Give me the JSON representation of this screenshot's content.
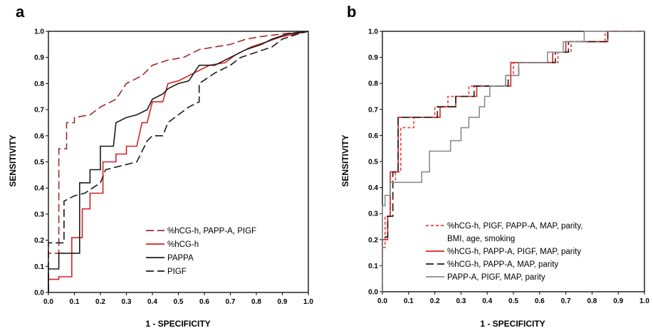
{
  "colors": {
    "dark_red": "#a52a2a",
    "red": "#d42222",
    "black": "#1a1a1a",
    "light_red": "#ff3333",
    "gray": "#8c8c8c"
  },
  "chart_data": [
    {
      "type": "line",
      "panel_label": "a",
      "xlabel": "1 - SPECIFICITY",
      "ylabel": "SENSITIVITY",
      "xlim": [
        0,
        1
      ],
      "ylim": [
        0,
        1
      ],
      "xticks": [
        "0.0",
        "0.1",
        "0.2",
        "0.3",
        "0.4",
        "0.5",
        "0.6",
        "0.7",
        "0.8",
        "0.9",
        "1.0"
      ],
      "yticks": [
        "0.0",
        "0.1",
        "0.2",
        "0.3",
        "0.4",
        "0.5",
        "0.6",
        "0.7",
        "0.8",
        "0.9",
        "1.0"
      ],
      "grid": false,
      "legend_position": "bottom-right",
      "series": [
        {
          "name": "%hCG-h, PAPP-A, PIGF",
          "color": "#a52a2a",
          "dash": "dashed",
          "points": [
            [
              0,
              0
            ],
            [
              0,
              0.15
            ],
            [
              0.04,
              0.15
            ],
            [
              0.04,
              0.55
            ],
            [
              0.07,
              0.55
            ],
            [
              0.07,
              0.65
            ],
            [
              0.1,
              0.65
            ],
            [
              0.1,
              0.67
            ],
            [
              0.16,
              0.68
            ],
            [
              0.2,
              0.71
            ],
            [
              0.26,
              0.74
            ],
            [
              0.3,
              0.8
            ],
            [
              0.36,
              0.83
            ],
            [
              0.4,
              0.87
            ],
            [
              0.46,
              0.89
            ],
            [
              0.52,
              0.9
            ],
            [
              0.58,
              0.93
            ],
            [
              0.64,
              0.94
            ],
            [
              0.7,
              0.95
            ],
            [
              0.76,
              0.97
            ],
            [
              0.82,
              0.98
            ],
            [
              0.9,
              0.99
            ],
            [
              1,
              1
            ]
          ]
        },
        {
          "name": "%hCG-h",
          "color": "#d42222",
          "dash": "solid",
          "points": [
            [
              0,
              0
            ],
            [
              0,
              0.05
            ],
            [
              0.04,
              0.05
            ],
            [
              0.04,
              0.06
            ],
            [
              0.09,
              0.06
            ],
            [
              0.09,
              0.21
            ],
            [
              0.13,
              0.21
            ],
            [
              0.13,
              0.32
            ],
            [
              0.16,
              0.32
            ],
            [
              0.16,
              0.38
            ],
            [
              0.21,
              0.38
            ],
            [
              0.21,
              0.5
            ],
            [
              0.26,
              0.5
            ],
            [
              0.26,
              0.53
            ],
            [
              0.3,
              0.53
            ],
            [
              0.3,
              0.56
            ],
            [
              0.34,
              0.56
            ],
            [
              0.36,
              0.65
            ],
            [
              0.38,
              0.65
            ],
            [
              0.4,
              0.73
            ],
            [
              0.44,
              0.73
            ],
            [
              0.46,
              0.8
            ],
            [
              0.5,
              0.81
            ],
            [
              0.56,
              0.84
            ],
            [
              0.62,
              0.87
            ],
            [
              0.68,
              0.88
            ],
            [
              0.72,
              0.91
            ],
            [
              0.78,
              0.94
            ],
            [
              0.84,
              0.96
            ],
            [
              0.9,
              0.98
            ],
            [
              1,
              1
            ]
          ]
        },
        {
          "name": "PAPPA",
          "color": "#1a1a1a",
          "dash": "solid",
          "points": [
            [
              0,
              0
            ],
            [
              0,
              0.09
            ],
            [
              0.04,
              0.09
            ],
            [
              0.04,
              0.15
            ],
            [
              0.12,
              0.15
            ],
            [
              0.12,
              0.42
            ],
            [
              0.16,
              0.42
            ],
            [
              0.16,
              0.47
            ],
            [
              0.2,
              0.47
            ],
            [
              0.2,
              0.56
            ],
            [
              0.25,
              0.56
            ],
            [
              0.26,
              0.65
            ],
            [
              0.3,
              0.67
            ],
            [
              0.34,
              0.68
            ],
            [
              0.38,
              0.7
            ],
            [
              0.4,
              0.74
            ],
            [
              0.44,
              0.76
            ],
            [
              0.46,
              0.78
            ],
            [
              0.5,
              0.8
            ],
            [
              0.54,
              0.81
            ],
            [
              0.58,
              0.87
            ],
            [
              0.64,
              0.87
            ],
            [
              0.7,
              0.9
            ],
            [
              0.76,
              0.93
            ],
            [
              0.82,
              0.95
            ],
            [
              0.86,
              0.97
            ],
            [
              0.92,
              0.99
            ],
            [
              1,
              1
            ]
          ]
        },
        {
          "name": "PIGF",
          "color": "#1a1a1a",
          "dash": "dashed",
          "points": [
            [
              0,
              0
            ],
            [
              0,
              0.19
            ],
            [
              0.06,
              0.19
            ],
            [
              0.06,
              0.35
            ],
            [
              0.1,
              0.37
            ],
            [
              0.14,
              0.38
            ],
            [
              0.17,
              0.4
            ],
            [
              0.2,
              0.42
            ],
            [
              0.22,
              0.47
            ],
            [
              0.26,
              0.48
            ],
            [
              0.3,
              0.49
            ],
            [
              0.34,
              0.5
            ],
            [
              0.38,
              0.58
            ],
            [
              0.4,
              0.6
            ],
            [
              0.44,
              0.6
            ],
            [
              0.46,
              0.65
            ],
            [
              0.5,
              0.68
            ],
            [
              0.54,
              0.71
            ],
            [
              0.58,
              0.73
            ],
            [
              0.58,
              0.8
            ],
            [
              0.64,
              0.84
            ],
            [
              0.7,
              0.87
            ],
            [
              0.74,
              0.9
            ],
            [
              0.8,
              0.92
            ],
            [
              0.86,
              0.94
            ],
            [
              0.9,
              0.97
            ],
            [
              0.96,
              0.99
            ],
            [
              1,
              1
            ]
          ]
        }
      ]
    },
    {
      "type": "line",
      "panel_label": "b",
      "xlabel": "1 - SPECIFICITY",
      "ylabel": "SENSITIVITY",
      "xlim": [
        0,
        1
      ],
      "ylim": [
        0,
        1
      ],
      "xticks": [
        "0.0",
        "0.1",
        "0.2",
        "0.3",
        "0.4",
        "0.5",
        "0.6",
        "0.7",
        "0.8",
        "0.9",
        "1.0"
      ],
      "yticks": [
        "0.0",
        "0.1",
        "0.2",
        "0.3",
        "0.4",
        "0.5",
        "0.6",
        "0.7",
        "0.8",
        "0.9",
        "1.0"
      ],
      "grid": false,
      "legend_position": "bottom-right",
      "series": [
        {
          "name": "%hCG-h, PIGF, PAPP-A, MAP, parity, BMI, age, smoking",
          "legend_lines": [
            "%hCG-h, PIGF, PAPP-A, MAP, parity,",
            "BMI, age, smoking"
          ],
          "color": "#ff3333",
          "dash": "dotted",
          "points": [
            [
              0,
              0
            ],
            [
              0,
              0.17
            ],
            [
              0.01,
              0.17
            ],
            [
              0.01,
              0.29
            ],
            [
              0.03,
              0.29
            ],
            [
              0.03,
              0.42
            ],
            [
              0.05,
              0.42
            ],
            [
              0.05,
              0.46
            ],
            [
              0.07,
              0.46
            ],
            [
              0.07,
              0.63
            ],
            [
              0.12,
              0.63
            ],
            [
              0.12,
              0.67
            ],
            [
              0.2,
              0.67
            ],
            [
              0.2,
              0.71
            ],
            [
              0.25,
              0.71
            ],
            [
              0.25,
              0.75
            ],
            [
              0.33,
              0.75
            ],
            [
              0.33,
              0.79
            ],
            [
              0.47,
              0.79
            ],
            [
              0.47,
              0.83
            ],
            [
              0.5,
              0.83
            ],
            [
              0.5,
              0.88
            ],
            [
              0.67,
              0.88
            ],
            [
              0.67,
              0.92
            ],
            [
              0.72,
              0.92
            ],
            [
              0.72,
              0.96
            ],
            [
              0.85,
              0.96
            ],
            [
              0.85,
              1
            ],
            [
              1,
              1
            ]
          ]
        },
        {
          "name": "%hCG-h, PAPP-A, PIGF,  MAP, parity",
          "color": "#d42222",
          "dash": "solid",
          "points": [
            [
              0,
              0
            ],
            [
              0,
              0.2
            ],
            [
              0.02,
              0.2
            ],
            [
              0.02,
              0.29
            ],
            [
              0.03,
              0.29
            ],
            [
              0.03,
              0.46
            ],
            [
              0.06,
              0.46
            ],
            [
              0.06,
              0.67
            ],
            [
              0.22,
              0.67
            ],
            [
              0.22,
              0.71
            ],
            [
              0.28,
              0.71
            ],
            [
              0.28,
              0.75
            ],
            [
              0.36,
              0.75
            ],
            [
              0.36,
              0.79
            ],
            [
              0.49,
              0.79
            ],
            [
              0.49,
              0.88
            ],
            [
              0.65,
              0.88
            ],
            [
              0.65,
              0.92
            ],
            [
              0.7,
              0.92
            ],
            [
              0.7,
              0.96
            ],
            [
              0.86,
              0.96
            ],
            [
              0.86,
              1
            ],
            [
              1,
              1
            ]
          ]
        },
        {
          "name": "%hCG-h, PAPP-A, MAP, parity",
          "color": "#1a1a1a",
          "dash": "dashed",
          "points": [
            [
              0,
              0
            ],
            [
              0,
              0.21
            ],
            [
              0.02,
              0.21
            ],
            [
              0.02,
              0.29
            ],
            [
              0.04,
              0.29
            ],
            [
              0.04,
              0.46
            ],
            [
              0.06,
              0.46
            ],
            [
              0.06,
              0.67
            ],
            [
              0.21,
              0.67
            ],
            [
              0.21,
              0.71
            ],
            [
              0.28,
              0.71
            ],
            [
              0.28,
              0.75
            ],
            [
              0.35,
              0.75
            ],
            [
              0.35,
              0.79
            ],
            [
              0.48,
              0.79
            ],
            [
              0.48,
              0.83
            ],
            [
              0.52,
              0.83
            ],
            [
              0.52,
              0.88
            ],
            [
              0.66,
              0.88
            ],
            [
              0.66,
              0.92
            ],
            [
              0.71,
              0.92
            ],
            [
              0.71,
              0.96
            ],
            [
              0.86,
              0.96
            ],
            [
              0.86,
              1
            ],
            [
              1,
              1
            ]
          ]
        },
        {
          "name": "PAPP-A, PIGF, MAP, parity",
          "color": "#8c8c8c",
          "dash": "solid",
          "points": [
            [
              0,
              0
            ],
            [
              0,
              0.33
            ],
            [
              0.01,
              0.33
            ],
            [
              0.01,
              0.37
            ],
            [
              0.03,
              0.37
            ],
            [
              0.03,
              0.42
            ],
            [
              0.15,
              0.42
            ],
            [
              0.15,
              0.46
            ],
            [
              0.18,
              0.46
            ],
            [
              0.18,
              0.54
            ],
            [
              0.26,
              0.54
            ],
            [
              0.26,
              0.58
            ],
            [
              0.3,
              0.58
            ],
            [
              0.3,
              0.63
            ],
            [
              0.33,
              0.63
            ],
            [
              0.33,
              0.67
            ],
            [
              0.37,
              0.67
            ],
            [
              0.37,
              0.71
            ],
            [
              0.39,
              0.71
            ],
            [
              0.39,
              0.75
            ],
            [
              0.41,
              0.75
            ],
            [
              0.41,
              0.79
            ],
            [
              0.47,
              0.79
            ],
            [
              0.47,
              0.83
            ],
            [
              0.52,
              0.83
            ],
            [
              0.52,
              0.88
            ],
            [
              0.63,
              0.88
            ],
            [
              0.63,
              0.92
            ],
            [
              0.69,
              0.92
            ],
            [
              0.69,
              0.96
            ],
            [
              0.77,
              0.96
            ],
            [
              0.77,
              1
            ],
            [
              1,
              1
            ]
          ]
        }
      ]
    }
  ]
}
